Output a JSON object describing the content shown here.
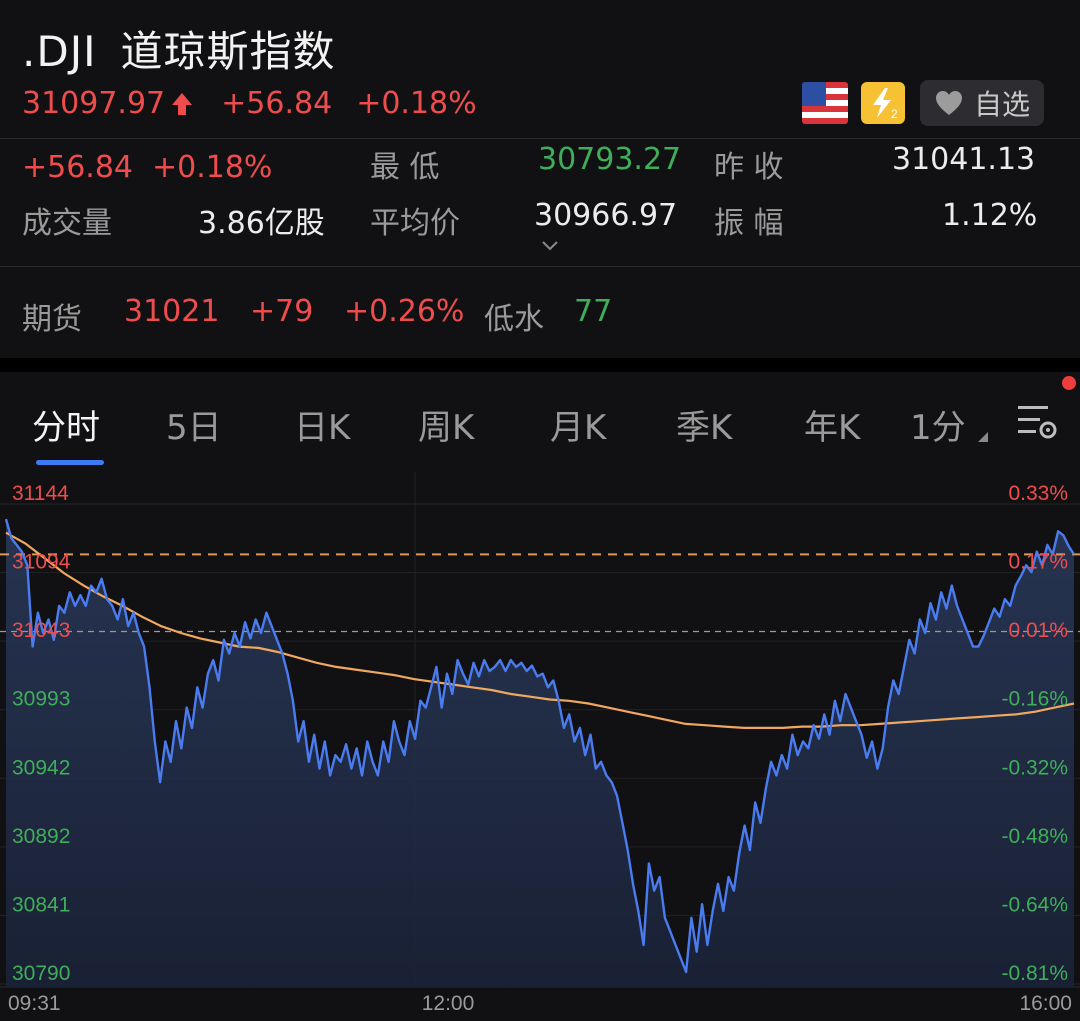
{
  "header": {
    "ticker": ".DJI",
    "name": "道琼斯指数",
    "price": "31097.97",
    "change": "+56.84",
    "change_pct": "+0.18%",
    "favorite_label": "自选"
  },
  "stats": {
    "change": "+56.84",
    "change_pct": "+0.18%",
    "low_label": "最    低",
    "low_value": "30793.27",
    "prev_close_label": "昨    收",
    "prev_close_value": "31041.13",
    "volume_label": "成交量",
    "volume_value": "3.86亿股",
    "avg_label": "平均价",
    "avg_value": "30966.97",
    "amplitude_label": "振    幅",
    "amplitude_value": "1.12%"
  },
  "futures": {
    "label": "期货",
    "price": "31021",
    "change": "+79",
    "change_pct": "+0.26%",
    "basis_label": "低水",
    "basis_value": "77"
  },
  "tabs": [
    "分时",
    "5日",
    "日K",
    "周K",
    "月K",
    "季K",
    "年K",
    "1分"
  ],
  "icons": {
    "flag": "us-flag-icon",
    "level2": "lightning-l2-icon",
    "heart": "heart-icon",
    "settings": "chart-settings-icon"
  },
  "colors": {
    "up": "#ef4d4d",
    "down": "#3fae5a",
    "price_line": "#4a7cf0",
    "avg_line": "#f0a860",
    "accent": "#3d7bf6"
  },
  "chart_data": {
    "type": "line",
    "y_labels_left": [
      "31144",
      "31094",
      "31043",
      "30993",
      "30942",
      "30892",
      "30841",
      "30790"
    ],
    "y_labels_right": [
      "0.33%",
      "0.17%",
      "0.01%",
      "-0.16%",
      "-0.32%",
      "-0.48%",
      "-0.64%",
      "-0.81%"
    ],
    "x_labels": [
      "09:31",
      "12:00",
      "16:00"
    ],
    "ylim": [
      30790,
      31144
    ],
    "prev_close": 31041.13,
    "current_price": 31097.97,
    "series": [
      {
        "values": [
          31124,
          31110,
          31105,
          31100,
          31090,
          31030,
          31055,
          31040,
          31050,
          31035,
          31060,
          31055,
          31070,
          31060,
          31068,
          31060,
          31075,
          31070,
          31080,
          31065,
          31060,
          31050,
          31065,
          31045,
          31055,
          31040,
          31030,
          31000,
          30960,
          30930,
          30960,
          30945,
          30975,
          30955,
          30985,
          30970,
          31000,
          30985,
          31010,
          31020,
          31005,
          31035,
          31025,
          31040,
          31030,
          31048,
          31036,
          31050,
          31040,
          31055,
          31045,
          31035,
          31025,
          31010,
          30990,
          30960,
          30975,
          30945,
          30965,
          30940,
          30960,
          30935,
          30950,
          30945,
          30958,
          30940,
          30955,
          30935,
          30960,
          30945,
          30935,
          30960,
          30945,
          30975,
          30960,
          30950,
          30975,
          30962,
          30990,
          30985,
          31000,
          31015,
          30985,
          31010,
          30995,
          31020,
          31010,
          31002,
          31018,
          31008,
          31020,
          31012,
          31015,
          31020,
          31012,
          31020,
          31015,
          31018,
          31012,
          31016,
          31008,
          31010,
          31000,
          31005,
          30990,
          30970,
          30980,
          30960,
          30970,
          30950,
          30965,
          30940,
          30945,
          30935,
          30930,
          30920,
          30900,
          30880,
          30855,
          30835,
          30810,
          30870,
          30850,
          30860,
          30830,
          30820,
          30810,
          30800,
          30790,
          30830,
          30805,
          30840,
          30810,
          30835,
          30855,
          30835,
          30860,
          30850,
          30878,
          30898,
          30880,
          30915,
          30900,
          30925,
          30945,
          30935,
          30950,
          30940,
          30965,
          30950,
          30960,
          30955,
          30972,
          30962,
          30980,
          30965,
          30990,
          30975,
          30995,
          30985,
          30975,
          30965,
          30948,
          30960,
          30940,
          30955,
          30985,
          31005,
          30995,
          31015,
          31035,
          31025,
          31050,
          31040,
          31062,
          31050,
          31070,
          31058,
          31075,
          31060,
          31050,
          31040,
          31030,
          31030,
          31038,
          31048,
          31058,
          31052,
          31065,
          31060,
          31075,
          31082,
          31090,
          31085,
          31100,
          31090,
          31105,
          31098,
          31115,
          31112,
          31104,
          31098
        ]
      },
      {
        "values": [
          31114,
          31106,
          31095,
          31084,
          31075,
          31067,
          31060,
          31052,
          31045,
          31040,
          31036,
          31033,
          31030,
          31029,
          31026,
          31022,
          31018,
          31015,
          31013,
          31011,
          31009,
          31006,
          31004,
          31002,
          31000,
          30998,
          30995,
          30993,
          30991,
          30990,
          30988,
          30985,
          30982,
          30979,
          30976,
          30973,
          30972,
          30971,
          30970,
          30970,
          30970,
          30971,
          30971,
          30972,
          30972,
          30973,
          30974,
          30975,
          30976,
          30977,
          30978,
          30979,
          30980,
          30982,
          30985,
          30988
        ]
      }
    ]
  }
}
